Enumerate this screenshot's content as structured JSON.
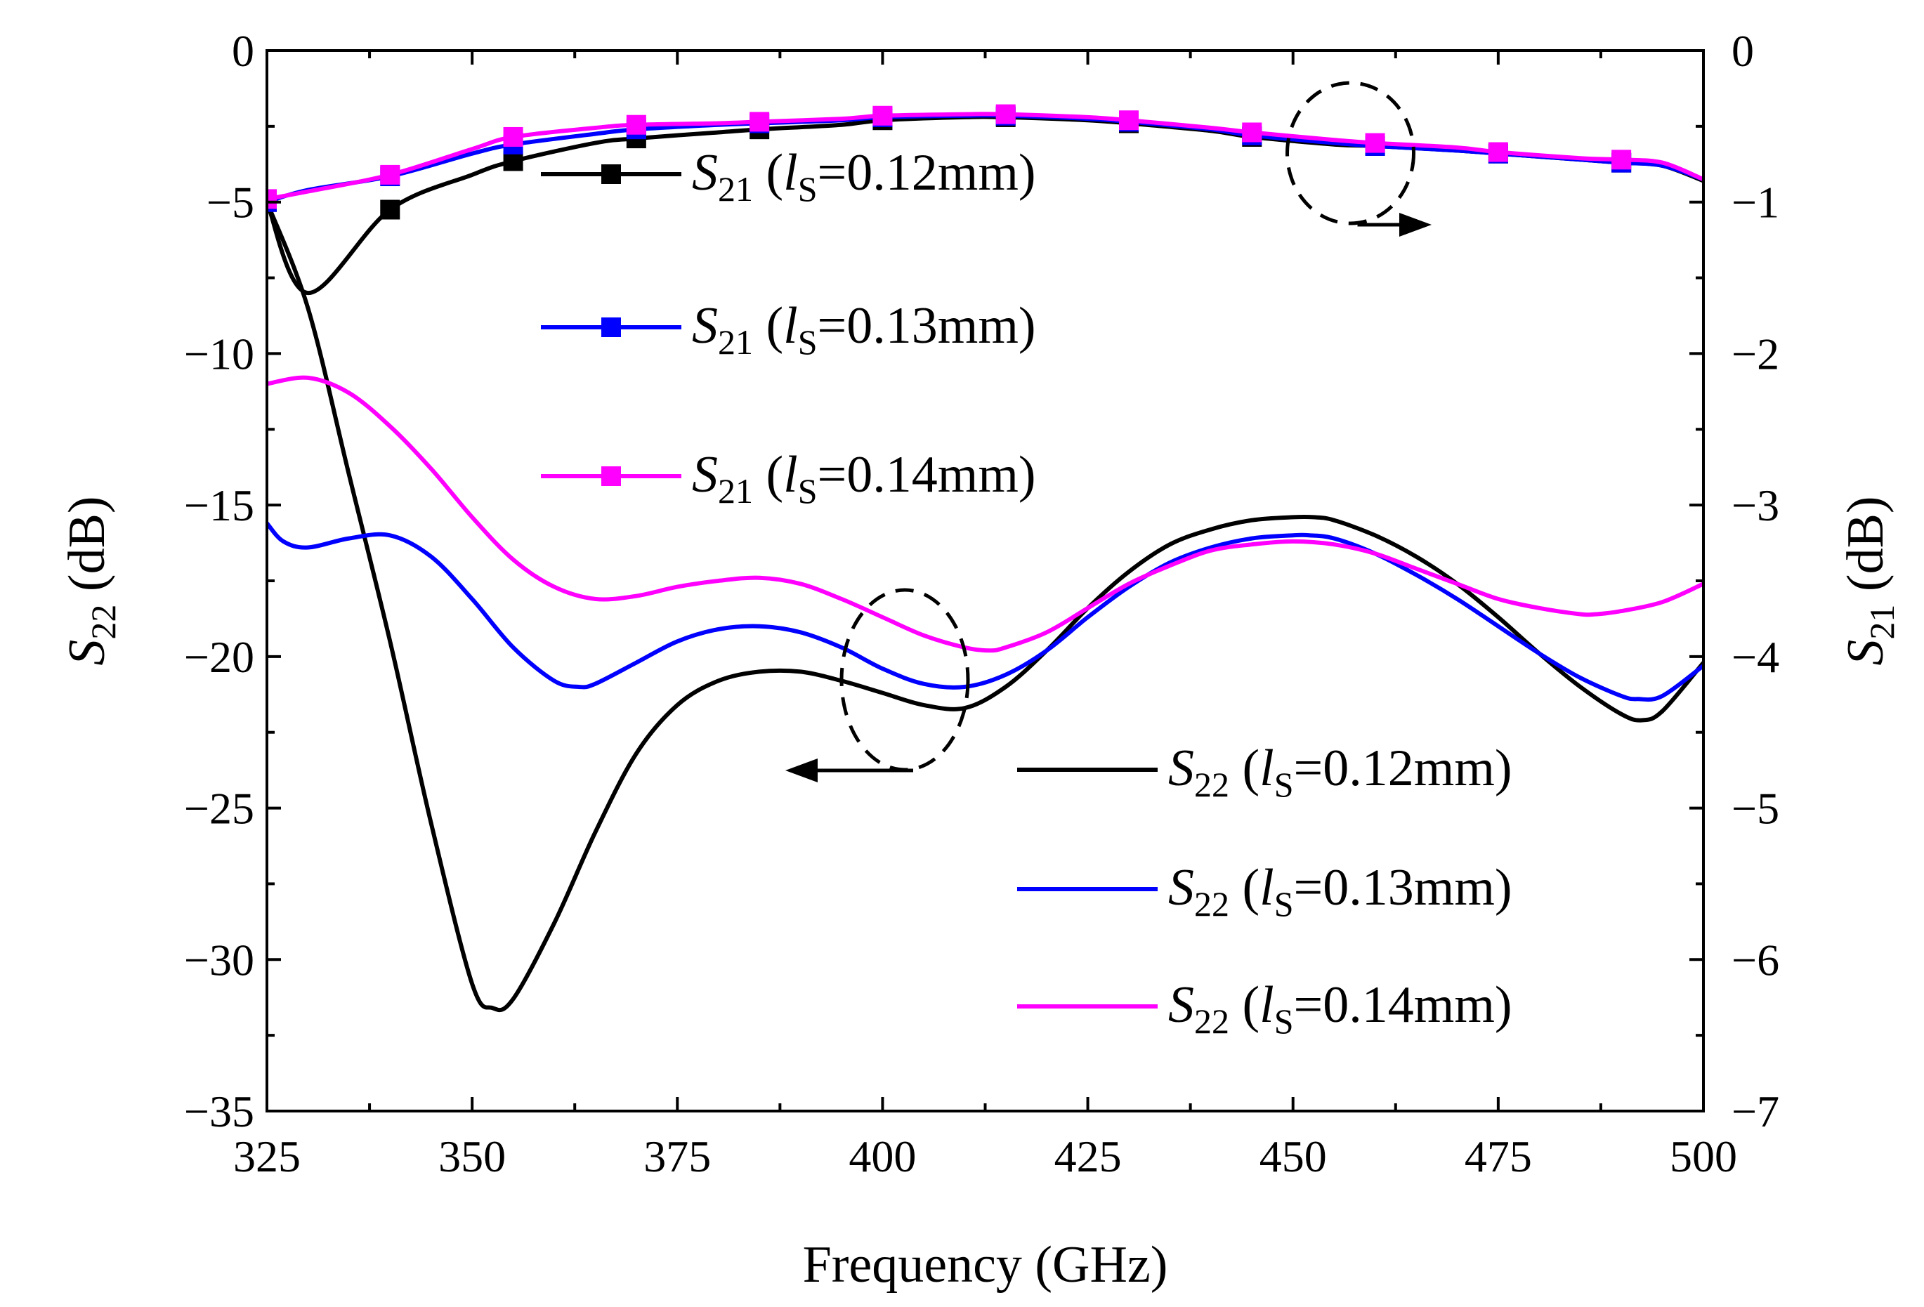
{
  "chart_data": {
    "type": "line",
    "xlabel": "Frequency (GHz)",
    "x_axis": {
      "range": [
        325,
        500
      ],
      "ticks": [
        325,
        350,
        375,
        400,
        425,
        450,
        475,
        500
      ],
      "tick_labels": [
        "325",
        "350",
        "375",
        "400",
        "425",
        "450",
        "475",
        "500"
      ]
    },
    "y_left": {
      "label": {
        "sym": "S",
        "sub": "22",
        "unit": " (dB)"
      },
      "range": [
        -35,
        0
      ],
      "ticks": [
        0,
        -5,
        -10,
        -15,
        -20,
        -25,
        -30,
        -35
      ],
      "tick_labels": [
        "0",
        "−5",
        "−10",
        "−15",
        "−20",
        "−25",
        "−30",
        "−35"
      ]
    },
    "y_right": {
      "label": {
        "sym": "S",
        "sub": "21",
        "unit": " (dB)"
      },
      "range": [
        -7,
        0
      ],
      "ticks": [
        0,
        -1,
        -2,
        -3,
        -4,
        -5,
        -6,
        -7
      ],
      "tick_labels": [
        "0",
        "−1",
        "−2",
        "−3",
        "−4",
        "−5",
        "−6",
        "−7"
      ]
    },
    "grid": false,
    "series": [
      {
        "name": "S21 (lS=0.12mm)",
        "axis": "right",
        "color": "#000000",
        "marker": "square",
        "x": [
          325,
          330,
          340,
          350,
          355,
          365,
          370,
          380,
          385,
          395,
          400,
          410,
          415,
          425,
          430,
          440,
          445,
          455,
          460,
          470,
          475,
          485,
          490,
          495,
          500
        ],
        "y": [
          -1.0,
          -1.6,
          -1.05,
          -0.82,
          -0.73,
          -0.61,
          -0.58,
          -0.54,
          -0.52,
          -0.49,
          -0.46,
          -0.44,
          -0.44,
          -0.46,
          -0.48,
          -0.53,
          -0.57,
          -0.62,
          -0.63,
          -0.66,
          -0.68,
          -0.72,
          -0.74,
          -0.76,
          -0.86
        ]
      },
      {
        "name": "S21 (lS=0.13mm)",
        "axis": "right",
        "color": "#0000ff",
        "marker": "square",
        "x": [
          325,
          330,
          340,
          350,
          355,
          365,
          370,
          380,
          385,
          395,
          400,
          410,
          415,
          425,
          430,
          440,
          445,
          455,
          460,
          470,
          475,
          485,
          490,
          495,
          500
        ],
        "y": [
          -1.0,
          -0.92,
          -0.83,
          -0.68,
          -0.62,
          -0.55,
          -0.52,
          -0.49,
          -0.48,
          -0.46,
          -0.44,
          -0.43,
          -0.43,
          -0.45,
          -0.47,
          -0.52,
          -0.56,
          -0.61,
          -0.63,
          -0.66,
          -0.68,
          -0.72,
          -0.74,
          -0.76,
          -0.85
        ]
      },
      {
        "name": "S21 (lS=0.14mm)",
        "axis": "right",
        "color": "#ff00ff",
        "marker": "square",
        "x": [
          325,
          330,
          340,
          350,
          355,
          365,
          370,
          380,
          385,
          395,
          400,
          410,
          415,
          425,
          430,
          440,
          445,
          455,
          460,
          470,
          475,
          485,
          490,
          495,
          500
        ],
        "y": [
          -0.98,
          -0.93,
          -0.82,
          -0.65,
          -0.57,
          -0.51,
          -0.49,
          -0.48,
          -0.47,
          -0.45,
          -0.43,
          -0.42,
          -0.42,
          -0.44,
          -0.46,
          -0.51,
          -0.54,
          -0.59,
          -0.61,
          -0.64,
          -0.67,
          -0.71,
          -0.72,
          -0.74,
          -0.85
        ]
      },
      {
        "name": "S22 (lS=0.12mm)",
        "axis": "left",
        "color": "#000000",
        "marker": "none",
        "x": [
          325,
          330,
          335,
          340,
          345,
          350,
          352.5,
          355,
          360,
          365,
          370,
          375,
          380,
          385,
          390,
          395,
          400,
          405,
          410,
          415,
          420,
          425,
          430,
          435,
          440,
          445,
          450,
          452.5,
          455,
          460,
          465,
          470,
          475,
          480,
          485,
          490,
          492.5,
          495,
          500
        ],
        "y": [
          -5.0,
          -8.5,
          -14.0,
          -19.5,
          -25.5,
          -30.8,
          -31.6,
          -31.3,
          -28.8,
          -25.8,
          -23.2,
          -21.6,
          -20.8,
          -20.5,
          -20.5,
          -20.8,
          -21.2,
          -21.6,
          -21.7,
          -21.0,
          -19.8,
          -18.4,
          -17.2,
          -16.3,
          -15.8,
          -15.5,
          -15.4,
          -15.4,
          -15.5,
          -16.0,
          -16.7,
          -17.6,
          -18.7,
          -19.9,
          -21.0,
          -21.9,
          -22.1,
          -21.8,
          -20.2
        ]
      },
      {
        "name": "S22 (lS=0.13mm)",
        "axis": "left",
        "color": "#0000ff",
        "marker": "none",
        "x": [
          325,
          327,
          330,
          335,
          340,
          345,
          350,
          355,
          360,
          363,
          365,
          370,
          375,
          380,
          385,
          390,
          395,
          400,
          405,
          410,
          415,
          420,
          425,
          430,
          435,
          440,
          445,
          450,
          452,
          455,
          460,
          465,
          470,
          475,
          480,
          485,
          490,
          492,
          495,
          500
        ],
        "y": [
          -15.6,
          -16.2,
          -16.4,
          -16.1,
          -16.0,
          -16.7,
          -18.1,
          -19.7,
          -20.8,
          -21.0,
          -20.9,
          -20.2,
          -19.5,
          -19.1,
          -19.0,
          -19.2,
          -19.7,
          -20.4,
          -20.9,
          -21.0,
          -20.6,
          -19.8,
          -18.7,
          -17.7,
          -16.9,
          -16.4,
          -16.1,
          -16.0,
          -16.0,
          -16.1,
          -16.6,
          -17.3,
          -18.1,
          -19.0,
          -19.9,
          -20.7,
          -21.3,
          -21.4,
          -21.3,
          -20.3
        ]
      },
      {
        "name": "S22 (lS=0.14mm)",
        "axis": "left",
        "color": "#ff00ff",
        "marker": "none",
        "x": [
          325,
          330,
          335,
          340,
          345,
          350,
          355,
          360,
          365,
          370,
          375,
          380,
          385,
          390,
          395,
          400,
          405,
          410,
          413,
          415,
          420,
          425,
          430,
          435,
          440,
          445,
          450,
          455,
          460,
          465,
          470,
          475,
          480,
          485,
          487,
          490,
          495,
          500
        ],
        "y": [
          -11.0,
          -10.8,
          -11.3,
          -12.4,
          -13.8,
          -15.4,
          -16.8,
          -17.7,
          -18.1,
          -18.0,
          -17.7,
          -17.5,
          -17.4,
          -17.6,
          -18.1,
          -18.7,
          -19.3,
          -19.7,
          -19.8,
          -19.7,
          -19.2,
          -18.4,
          -17.6,
          -17.0,
          -16.5,
          -16.3,
          -16.2,
          -16.3,
          -16.6,
          -17.1,
          -17.6,
          -18.1,
          -18.4,
          -18.6,
          -18.6,
          -18.5,
          -18.2,
          -17.6
        ]
      }
    ],
    "legend": {
      "placement": "inside",
      "entries": [
        {
          "sym": "S",
          "sub": "21",
          "open": " (",
          "lsym": "l",
          "lsub": "S",
          "val": "=0.12mm)",
          "color": "#000000",
          "marker": "square"
        },
        {
          "sym": "S",
          "sub": "21",
          "open": " (",
          "lsym": "l",
          "lsub": "S",
          "val": "=0.13mm)",
          "color": "#0000ff",
          "marker": "square"
        },
        {
          "sym": "S",
          "sub": "21",
          "open": " (",
          "lsym": "l",
          "lsub": "S",
          "val": "=0.14mm)",
          "color": "#ff00ff",
          "marker": "square"
        },
        {
          "sym": "S",
          "sub": "22",
          "open": " (",
          "lsym": "l",
          "lsub": "S",
          "val": "=0.12mm)",
          "color": "#000000",
          "marker": "none"
        },
        {
          "sym": "S",
          "sub": "22",
          "open": " (",
          "lsym": "l",
          "lsub": "S",
          "val": "=0.13mm)",
          "color": "#0000ff",
          "marker": "none"
        },
        {
          "sym": "S",
          "sub": "22",
          "open": " (",
          "lsym": "l",
          "lsub": "S",
          "val": "=0.14mm)",
          "color": "#ff00ff",
          "marker": "none"
        }
      ]
    },
    "annotations": [
      {
        "kind": "dashed-ellipse",
        "target_series": "S21",
        "cx": 457,
        "cy_right": -0.65,
        "arrow": "right"
      },
      {
        "kind": "dashed-ellipse",
        "target_series": "S22",
        "cx": 405,
        "cy_left": -21.5,
        "arrow": "left"
      }
    ]
  }
}
